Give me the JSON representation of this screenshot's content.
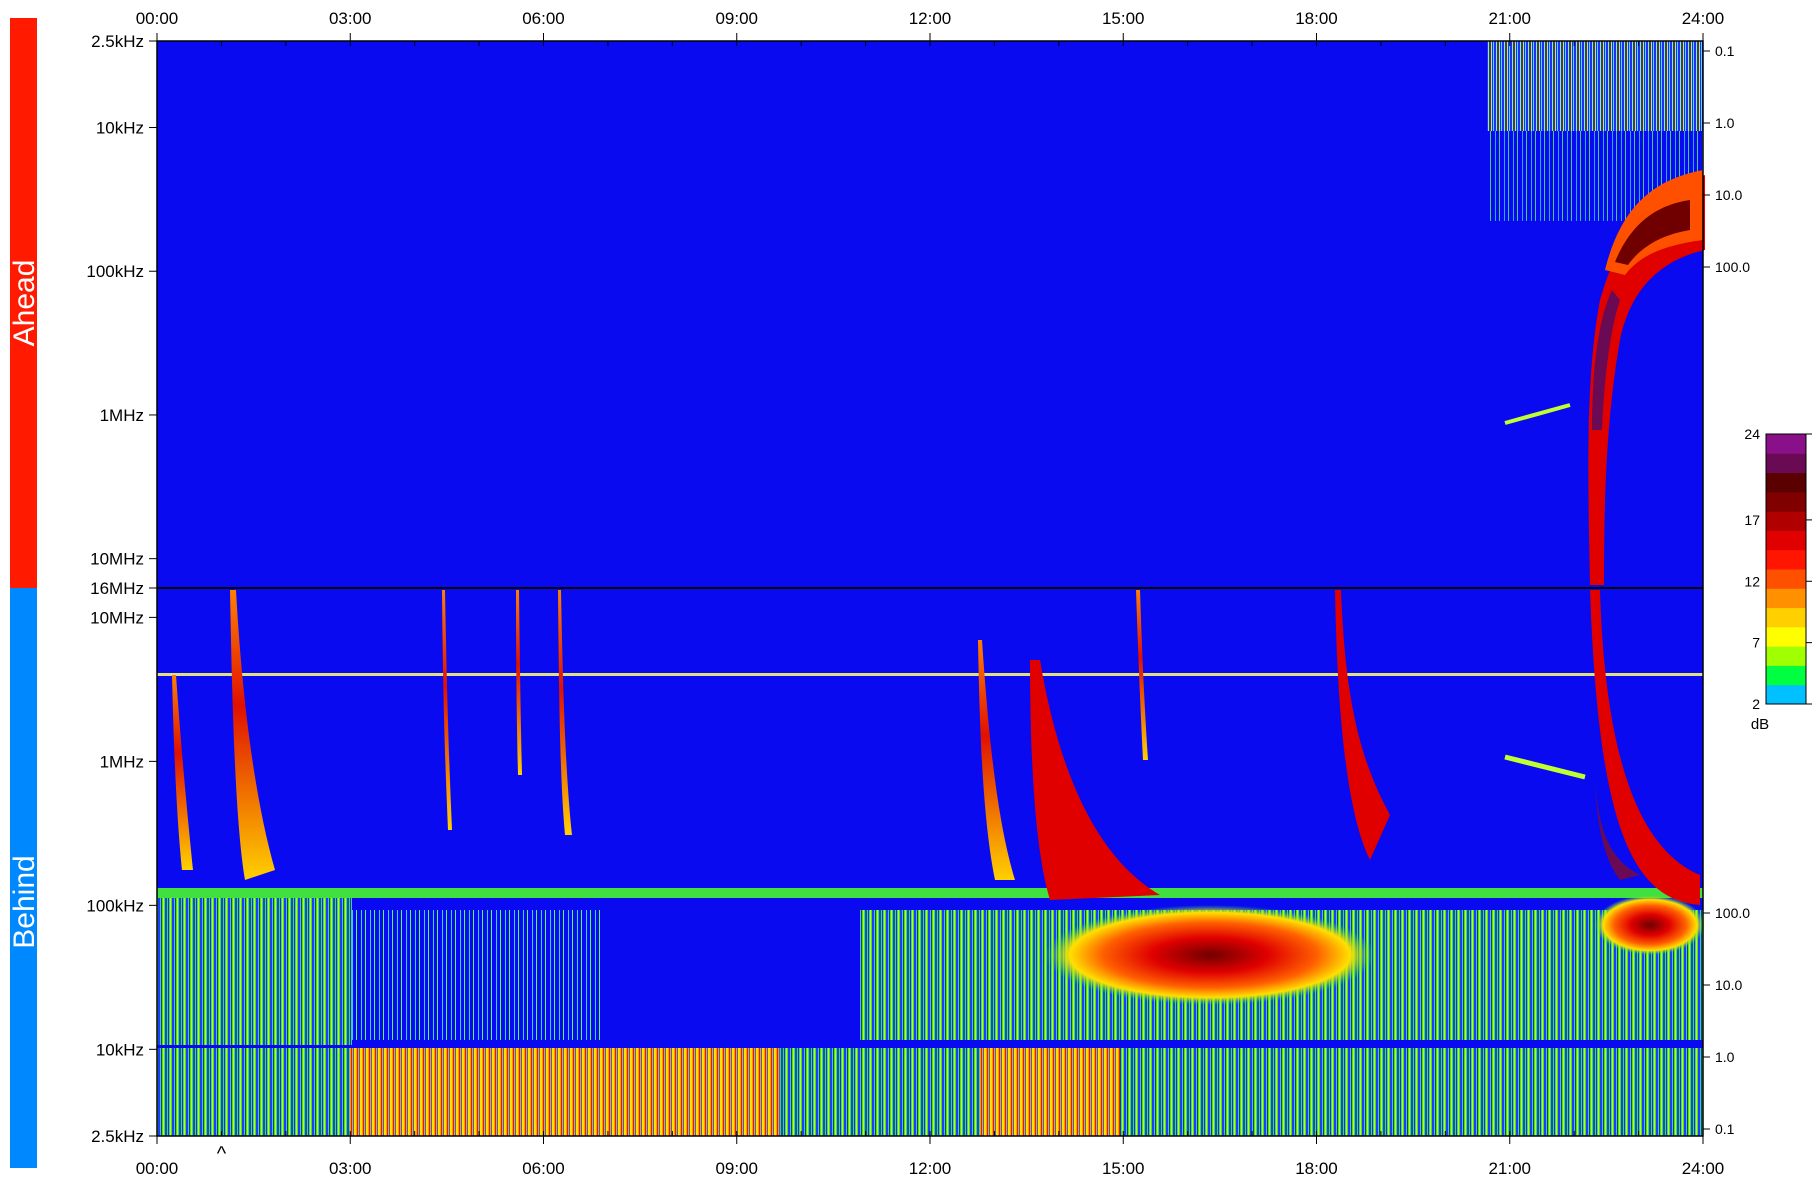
{
  "chart_data": {
    "type": "heatmap",
    "title": "",
    "time_axis": {
      "ticks": [
        "00:00",
        "03:00",
        "06:00",
        "09:00",
        "12:00",
        "15:00",
        "18:00",
        "21:00",
        "24:00"
      ],
      "range_hours": [
        0,
        24
      ]
    },
    "panels": [
      {
        "name": "Ahead",
        "color": "#ff1a00",
        "freq_axis": {
          "scale": "log",
          "range_hz": [
            2500,
            16000000
          ],
          "ticks": [
            "2.5kHz",
            "10kHz",
            "100kHz",
            "1MHz",
            "10MHz",
            "16MHz"
          ]
        },
        "right_axis": {
          "ticks": [
            "0.1",
            "1.0",
            "10.0",
            "100.0"
          ]
        }
      },
      {
        "name": "Behind",
        "color": "#0088ff",
        "freq_axis": {
          "scale": "log",
          "range_hz": [
            2500,
            16000000
          ],
          "ticks": [
            "10MHz",
            "1MHz",
            "100kHz",
            "10kHz",
            "2.5kHz"
          ]
        },
        "right_axis": {
          "ticks": [
            "100.0",
            "10.0",
            "1.0",
            "0.1"
          ]
        }
      }
    ],
    "colorbar": {
      "label": "dB",
      "ticks": [
        "2",
        "7",
        "12",
        "17",
        "24"
      ],
      "range": [
        2,
        24
      ],
      "colors": [
        "#00c0ff",
        "#00ff40",
        "#a0ff00",
        "#ffff00",
        "#ffd000",
        "#ff9000",
        "#ff5000",
        "#ff1500",
        "#e00000",
        "#b00000",
        "#800000",
        "#5a0000",
        "#6a0a55",
        "#8a108a"
      ]
    },
    "background_color": "#0a0af0",
    "events": [
      {
        "panel": "Behind",
        "type": "type III burst",
        "t_hours": 1.1,
        "f_top_hz": 16000000,
        "f_bottom_hz": 60000
      },
      {
        "panel": "Behind",
        "type": "type III burst",
        "t_hours": 0.25,
        "f_top_hz": 3000000,
        "f_bottom_hz": 100000
      },
      {
        "panel": "Behind",
        "type": "type III burst",
        "t_hours": 4.5,
        "f_top_hz": 16000000,
        "f_bottom_hz": 300000
      },
      {
        "panel": "Behind",
        "type": "type III burst",
        "t_hours": 5.6,
        "f_top_hz": 16000000,
        "f_bottom_hz": 700000
      },
      {
        "panel": "Behind",
        "type": "type III burst",
        "t_hours": 6.3,
        "f_top_hz": 16000000,
        "f_bottom_hz": 250000
      },
      {
        "panel": "Behind",
        "type": "type III burst",
        "t_hours": 12.8,
        "f_top_hz": 6000000,
        "f_bottom_hz": 120000
      },
      {
        "panel": "Behind",
        "type": "type III burst",
        "t_hours": 13.6,
        "f_top_hz": 16000000,
        "f_bottom_hz": 20000
      },
      {
        "panel": "Behind",
        "type": "type III burst",
        "t_hours": 15.2,
        "f_top_hz": 16000000,
        "f_bottom_hz": 1500000
      },
      {
        "panel": "Behind",
        "type": "type III burst",
        "t_hours": 18.2,
        "f_top_hz": 16000000,
        "f_bottom_hz": 120000
      },
      {
        "panel": "Ahead",
        "type": "type III burst",
        "t_hours": 22.3,
        "f_top_hz": 16000000,
        "f_bottom_hz": 30000
      },
      {
        "panel": "Behind",
        "type": "type III burst",
        "t_hours": 22.3,
        "f_top_hz": 16000000,
        "f_bottom_hz": 30000
      }
    ]
  },
  "marker": {
    "symbol": "^",
    "t_hours": 1.0
  }
}
